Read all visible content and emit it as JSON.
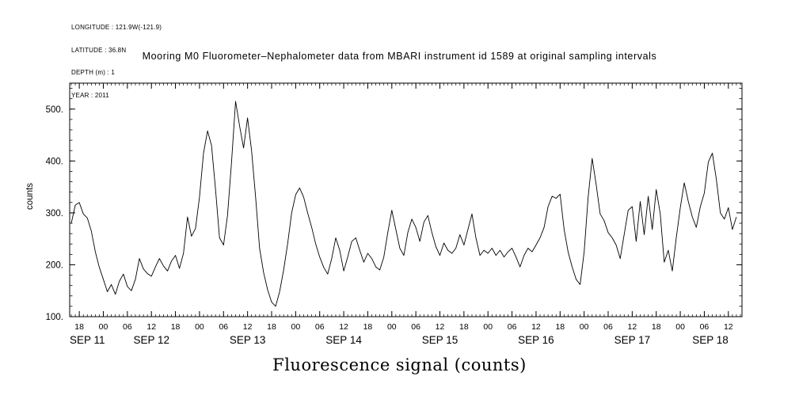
{
  "metadata": {
    "longitude": "LONGITUDE : 121.9W(-121.9)",
    "latitude": "LATITUDE : 36.8N",
    "depth": "DEPTH (m) : 1",
    "year": "YEAR : 2011"
  },
  "title": "Mooring M0 Fluorometer–Nephalometer data from MBARI instrument id 1589 at original sampling intervals",
  "footer_title": "Fluorescence signal (counts)",
  "chart_data": {
    "type": "line",
    "title": "Mooring M0 Fluorometer–Nephalometer data from MBARI instrument id 1589 at original sampling intervals",
    "xlabel": "Fluorescence signal (counts)",
    "ylabel": "counts",
    "line_color": "#000000",
    "grid": false,
    "ylim": [
      100,
      550
    ],
    "yticks": [
      100,
      200,
      300,
      400,
      500
    ],
    "ytick_labels": [
      "100.",
      "200.",
      "300.",
      "400.",
      "500."
    ],
    "x_unit": "hours, hourly samples starting SEP 11 16:00, YEAR 2011",
    "x_step_hours": 1,
    "x_tick_first_t": 2,
    "x_tick_step_hours": 6,
    "x_tick_labels": [
      "18",
      "00",
      "06",
      "12",
      "18",
      "00",
      "06",
      "12",
      "18",
      "00",
      "06",
      "12",
      "18",
      "00",
      "06",
      "12",
      "18",
      "00",
      "06",
      "12",
      "18",
      "00",
      "06",
      "12",
      "18",
      "00",
      "06",
      "12"
    ],
    "date_labels": [
      {
        "label": "SEP 11",
        "t": 4
      },
      {
        "label": "SEP 12",
        "t": 20
      },
      {
        "label": "SEP 13",
        "t": 44
      },
      {
        "label": "SEP 14",
        "t": 68
      },
      {
        "label": "SEP 15",
        "t": 92
      },
      {
        "label": "SEP 16",
        "t": 116
      },
      {
        "label": "SEP 17",
        "t": 140
      },
      {
        "label": "SEP 18",
        "t": 159.5
      }
    ],
    "series": [
      {
        "name": "fluorescence_counts",
        "values": [
          280,
          315,
          320,
          298,
          290,
          265,
          225,
          195,
          172,
          148,
          162,
          143,
          168,
          182,
          158,
          150,
          172,
          212,
          192,
          183,
          178,
          196,
          212,
          198,
          188,
          207,
          218,
          193,
          222,
          292,
          255,
          270,
          330,
          415,
          458,
          430,
          345,
          252,
          238,
          295,
          398,
          515,
          468,
          425,
          483,
          420,
          330,
          232,
          185,
          152,
          128,
          120,
          148,
          190,
          240,
          300,
          335,
          348,
          330,
          300,
          272,
          240,
          215,
          195,
          182,
          212,
          252,
          228,
          188,
          215,
          245,
          252,
          228,
          205,
          222,
          212,
          196,
          190,
          215,
          262,
          305,
          268,
          232,
          218,
          262,
          288,
          272,
          245,
          282,
          295,
          262,
          235,
          218,
          242,
          228,
          222,
          232,
          258,
          238,
          268,
          298,
          252,
          218,
          228,
          222,
          232,
          218,
          228,
          215,
          225,
          232,
          215,
          196,
          218,
          232,
          225,
          238,
          252,
          272,
          312,
          332,
          328,
          336,
          268,
          225,
          196,
          172,
          162,
          225,
          330,
          405,
          355,
          298,
          285,
          262,
          252,
          238,
          212,
          258,
          305,
          312,
          245,
          322,
          258,
          332,
          268,
          345,
          298,
          205,
          228,
          188,
          252,
          310,
          358,
          322,
          292,
          272,
          312,
          338,
          398,
          415,
          365,
          300,
          288,
          310,
          268,
          292
        ]
      }
    ]
  }
}
